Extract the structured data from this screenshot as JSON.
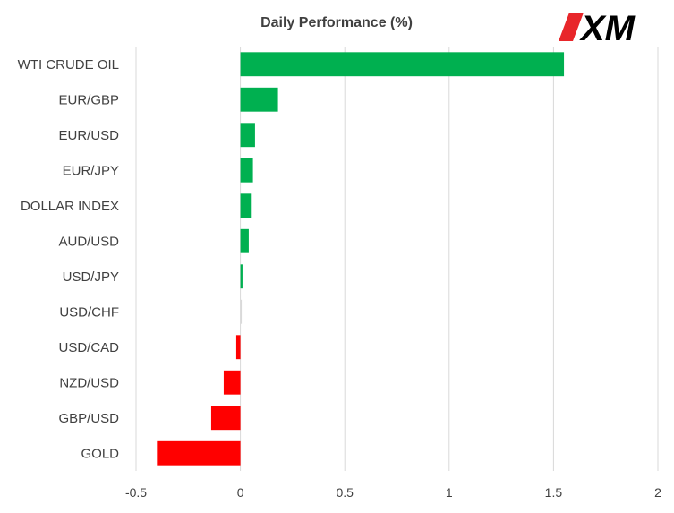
{
  "chart_data": {
    "type": "bar",
    "orientation": "horizontal",
    "title": "Daily Performance (%)",
    "xlabel": "",
    "ylabel": "",
    "categories": [
      "WTI CRUDE OIL",
      "EUR/GBP",
      "EUR/USD",
      "EUR/JPY",
      "DOLLAR INDEX",
      "AUD/USD",
      "USD/JPY",
      "USD/CHF",
      "USD/CAD",
      "NZD/USD",
      "GBP/USD",
      "GOLD"
    ],
    "values": [
      1.55,
      0.18,
      0.07,
      0.06,
      0.05,
      0.04,
      0.01,
      0.0,
      -0.02,
      -0.08,
      -0.14,
      -0.4
    ],
    "xlim": [
      -0.5,
      2
    ],
    "xticks": [
      -0.5,
      0,
      0.5,
      1,
      1.5,
      2
    ],
    "xtick_labels": [
      "-0.5",
      "0",
      "0.5",
      "1",
      "1.5",
      "2"
    ],
    "grid": "vertical",
    "legend": "none",
    "colors": {
      "positive": "#00b050",
      "negative": "#ff0000",
      "zero": "#d9d9d9"
    }
  },
  "logo": {
    "text": "XM",
    "accent": "#e8262a"
  }
}
